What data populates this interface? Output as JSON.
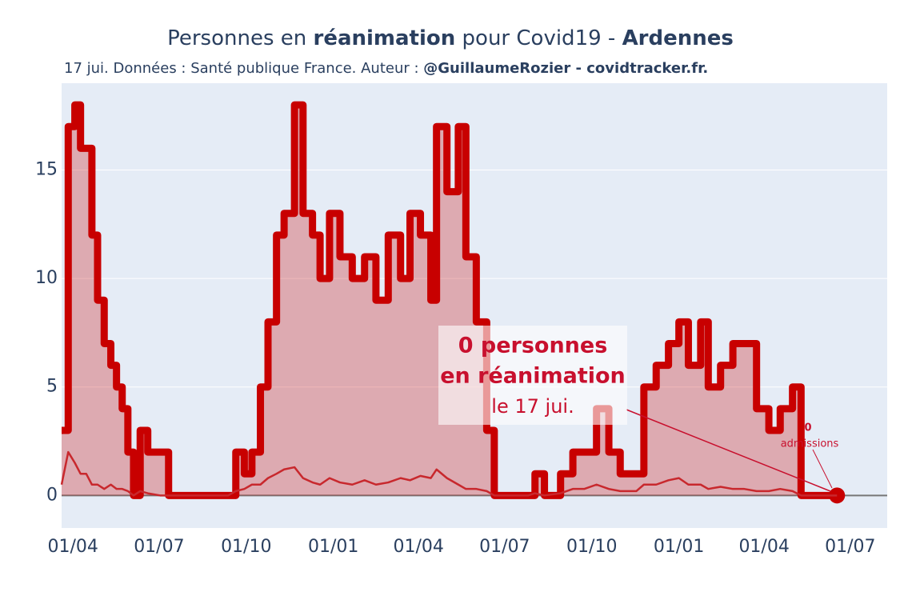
{
  "chart_data": {
    "type": "line",
    "title": [
      "Personnes en ",
      "réanimation",
      " pour Covid19 - ",
      "Ardennes"
    ],
    "subtitle": [
      "17 jui. Données : Santé publique France. Auteur : ",
      "@GuillaumeRozier - covidtracker.fr."
    ],
    "x": [
      2,
      9,
      16,
      22,
      28,
      34,
      40,
      47,
      54,
      60,
      66,
      72,
      78,
      85,
      93,
      106,
      115,
      178,
      186,
      195,
      203,
      212,
      220,
      229,
      237,
      248,
      257,
      267,
      275,
      285,
      296,
      309,
      322,
      334,
      347,
      360,
      370,
      381,
      392,
      398,
      409,
      421,
      429,
      440,
      451,
      459,
      495,
      502,
      512,
      529,
      542,
      554,
      567,
      580,
      592,
      609,
      617,
      630,
      643,
      654,
      664,
      677,
      685,
      698,
      711,
      723,
      736,
      749,
      761,
      774,
      783,
      821
    ],
    "series": [
      {
        "color": "#c80000",
        "fill": true,
        "step": true,
        "values": [
          3,
          17,
          18,
          16,
          16,
          12,
          9,
          7,
          6,
          5,
          4,
          2,
          0,
          3,
          2,
          2,
          0,
          0,
          2,
          1,
          2,
          5,
          8,
          12,
          13,
          18,
          13,
          12,
          10,
          13,
          11,
          10,
          11,
          9,
          12,
          10,
          13,
          12,
          9,
          17,
          14,
          17,
          11,
          8,
          3,
          0,
          0,
          1,
          0,
          1,
          2,
          2,
          4,
          2,
          1,
          1,
          5,
          6,
          7,
          8,
          6,
          8,
          5,
          6,
          7,
          7,
          4,
          3,
          4,
          5,
          0,
          0
        ]
      },
      {
        "color": "#c8282d",
        "fill": false,
        "step": false,
        "values": [
          0.5,
          2,
          1.5,
          1,
          1,
          0.5,
          0.5,
          0.3,
          0.5,
          0.3,
          0.3,
          0.2,
          0,
          0.2,
          0.1,
          0,
          0,
          0,
          0.2,
          0.3,
          0.5,
          0.5,
          0.8,
          1,
          1.2,
          1.3,
          0.8,
          0.6,
          0.5,
          0.8,
          0.6,
          0.5,
          0.7,
          0.5,
          0.6,
          0.8,
          0.7,
          0.9,
          0.8,
          1.2,
          0.8,
          0.5,
          0.3,
          0.3,
          0.2,
          0,
          0,
          0.1,
          0,
          0.1,
          0.3,
          0.3,
          0.5,
          0.3,
          0.2,
          0.2,
          0.5,
          0.5,
          0.7,
          0.8,
          0.5,
          0.5,
          0.3,
          0.4,
          0.3,
          0.3,
          0.2,
          0.2,
          0.3,
          0.2,
          0,
          0
        ]
      }
    ],
    "xlim": [
      2,
      874
    ],
    "xticks": [
      {
        "value": 14,
        "label": "01/04"
      },
      {
        "value": 105,
        "label": "01/07"
      },
      {
        "value": 197,
        "label": "01/10"
      },
      {
        "value": 289,
        "label": "01/01"
      },
      {
        "value": 379,
        "label": "01/04"
      },
      {
        "value": 470,
        "label": "01/07"
      },
      {
        "value": 562,
        "label": "01/10"
      },
      {
        "value": 654,
        "label": "01/01"
      },
      {
        "value": 744,
        "label": "01/04"
      },
      {
        "value": 835,
        "label": "01/07"
      }
    ],
    "ylim": [
      -1.5,
      19
    ],
    "yticks": [
      0,
      5,
      10,
      15
    ],
    "grid": true,
    "annotations": [
      {
        "lines": [
          "0 personnes",
          "en réanimation",
          "le 17 jui."
        ]
      },
      {
        "lines": [
          "0",
          "admissions"
        ]
      }
    ]
  }
}
